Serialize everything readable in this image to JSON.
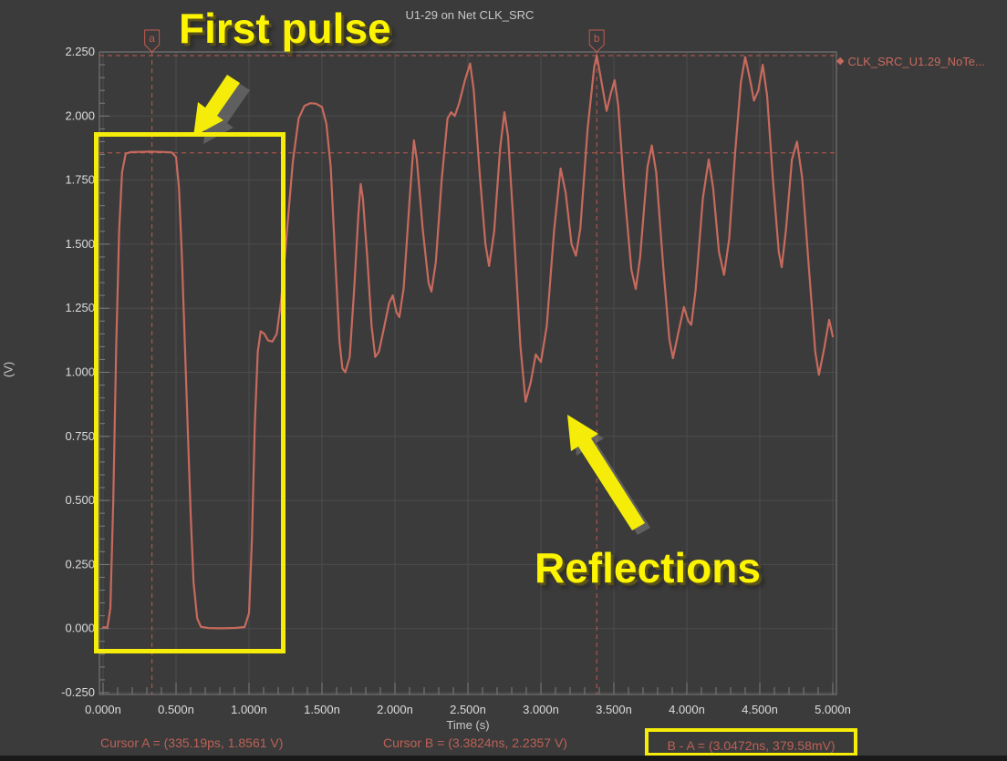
{
  "window": {
    "title": "U1-29 on Net CLK_SRC"
  },
  "chart_data": {
    "type": "line",
    "title": "U1-29 on Net CLK_SRC",
    "xlabel": "Time (s)",
    "ylabel": "(V)",
    "xlim": [
      0,
      5
    ],
    "ylim": [
      -0.25,
      2.25
    ],
    "grid": true,
    "legend_position": "top-right",
    "x_minor_step": 0.1,
    "y_minor_step": 0.05,
    "x_ticks": [
      {
        "value": 0.0,
        "label": "0.000n"
      },
      {
        "value": 0.5,
        "label": "0.500n"
      },
      {
        "value": 1.0,
        "label": "1.000n"
      },
      {
        "value": 1.5,
        "label": "1.500n"
      },
      {
        "value": 2.0,
        "label": "2.000n"
      },
      {
        "value": 2.5,
        "label": "2.500n"
      },
      {
        "value": 3.0,
        "label": "3.000n"
      },
      {
        "value": 3.5,
        "label": "3.500n"
      },
      {
        "value": 4.0,
        "label": "4.000n"
      },
      {
        "value": 4.5,
        "label": "4.500n"
      },
      {
        "value": 5.0,
        "label": "5.000n"
      }
    ],
    "y_ticks": [
      {
        "value": 2.25,
        "label": "2.250"
      },
      {
        "value": 2.0,
        "label": "2.000"
      },
      {
        "value": 1.75,
        "label": "1.750"
      },
      {
        "value": 1.5,
        "label": "1.500"
      },
      {
        "value": 1.25,
        "label": "1.250"
      },
      {
        "value": 1.0,
        "label": "1.000"
      },
      {
        "value": 0.75,
        "label": "0.750"
      },
      {
        "value": 0.5,
        "label": "0.500"
      },
      {
        "value": 0.25,
        "label": "0.250"
      },
      {
        "value": 0.0,
        "label": "0.000"
      },
      {
        "value": -0.25,
        "label": "-0.250"
      }
    ],
    "cursors": [
      {
        "label": "a",
        "t_ns": 0.33519,
        "v": 1.8561
      },
      {
        "label": "b",
        "t_ns": 3.3824,
        "v": 2.2357
      }
    ],
    "series": [
      {
        "name": "CLK_SRC_U1.29_NoTe...",
        "color": "#c76a5d",
        "points": [
          [
            0.0,
            0.005
          ],
          [
            0.03,
            0.005
          ],
          [
            0.05,
            0.08
          ],
          [
            0.07,
            0.5
          ],
          [
            0.09,
            1.1
          ],
          [
            0.11,
            1.55
          ],
          [
            0.13,
            1.78
          ],
          [
            0.155,
            1.853
          ],
          [
            0.19,
            1.859
          ],
          [
            0.25,
            1.86
          ],
          [
            0.32,
            1.861
          ],
          [
            0.4,
            1.86
          ],
          [
            0.47,
            1.858
          ],
          [
            0.5,
            1.84
          ],
          [
            0.52,
            1.72
          ],
          [
            0.54,
            1.45
          ],
          [
            0.57,
            0.95
          ],
          [
            0.6,
            0.45
          ],
          [
            0.62,
            0.18
          ],
          [
            0.645,
            0.04
          ],
          [
            0.67,
            0.007
          ],
          [
            0.72,
            0.002
          ],
          [
            0.8,
            0.001
          ],
          [
            0.9,
            0.002
          ],
          [
            0.97,
            0.006
          ],
          [
            1.0,
            0.06
          ],
          [
            1.02,
            0.35
          ],
          [
            1.04,
            0.8
          ],
          [
            1.06,
            1.08
          ],
          [
            1.08,
            1.16
          ],
          [
            1.105,
            1.15
          ],
          [
            1.13,
            1.125
          ],
          [
            1.16,
            1.12
          ],
          [
            1.19,
            1.15
          ],
          [
            1.22,
            1.28
          ],
          [
            1.26,
            1.55
          ],
          [
            1.3,
            1.82
          ],
          [
            1.34,
            1.99
          ],
          [
            1.38,
            2.04
          ],
          [
            1.42,
            2.05
          ],
          [
            1.46,
            2.048
          ],
          [
            1.5,
            2.035
          ],
          [
            1.53,
            1.97
          ],
          [
            1.56,
            1.8
          ],
          [
            1.59,
            1.45
          ],
          [
            1.62,
            1.12
          ],
          [
            1.64,
            1.015
          ],
          [
            1.66,
            1.0
          ],
          [
            1.69,
            1.06
          ],
          [
            1.72,
            1.32
          ],
          [
            1.75,
            1.62
          ],
          [
            1.765,
            1.735
          ],
          [
            1.78,
            1.68
          ],
          [
            1.81,
            1.45
          ],
          [
            1.84,
            1.18
          ],
          [
            1.865,
            1.06
          ],
          [
            1.89,
            1.08
          ],
          [
            1.92,
            1.16
          ],
          [
            1.96,
            1.27
          ],
          [
            1.985,
            1.3
          ],
          [
            2.01,
            1.235
          ],
          [
            2.03,
            1.215
          ],
          [
            2.06,
            1.33
          ],
          [
            2.1,
            1.67
          ],
          [
            2.13,
            1.905
          ],
          [
            2.15,
            1.83
          ],
          [
            2.19,
            1.56
          ],
          [
            2.23,
            1.35
          ],
          [
            2.25,
            1.315
          ],
          [
            2.28,
            1.43
          ],
          [
            2.32,
            1.75
          ],
          [
            2.36,
            1.99
          ],
          [
            2.385,
            2.015
          ],
          [
            2.41,
            2.0
          ],
          [
            2.44,
            2.05
          ],
          [
            2.48,
            2.14
          ],
          [
            2.515,
            2.205
          ],
          [
            2.54,
            2.1
          ],
          [
            2.58,
            1.78
          ],
          [
            2.62,
            1.5
          ],
          [
            2.645,
            1.415
          ],
          [
            2.68,
            1.55
          ],
          [
            2.72,
            1.87
          ],
          [
            2.75,
            2.015
          ],
          [
            2.775,
            1.92
          ],
          [
            2.81,
            1.6
          ],
          [
            2.86,
            1.1
          ],
          [
            2.895,
            0.885
          ],
          [
            2.93,
            0.96
          ],
          [
            2.965,
            1.07
          ],
          [
            3.0,
            1.04
          ],
          [
            3.04,
            1.18
          ],
          [
            3.09,
            1.55
          ],
          [
            3.135,
            1.795
          ],
          [
            3.17,
            1.7
          ],
          [
            3.21,
            1.5
          ],
          [
            3.24,
            1.455
          ],
          [
            3.27,
            1.56
          ],
          [
            3.32,
            1.95
          ],
          [
            3.365,
            2.19
          ],
          [
            3.3824,
            2.2357
          ],
          [
            3.41,
            2.15
          ],
          [
            3.45,
            2.02
          ],
          [
            3.48,
            2.09
          ],
          [
            3.505,
            2.14
          ],
          [
            3.53,
            2.04
          ],
          [
            3.57,
            1.72
          ],
          [
            3.62,
            1.4
          ],
          [
            3.65,
            1.325
          ],
          [
            3.68,
            1.45
          ],
          [
            3.73,
            1.8
          ],
          [
            3.76,
            1.885
          ],
          [
            3.79,
            1.78
          ],
          [
            3.84,
            1.4
          ],
          [
            3.88,
            1.13
          ],
          [
            3.905,
            1.055
          ],
          [
            3.94,
            1.15
          ],
          [
            3.98,
            1.255
          ],
          [
            4.01,
            1.2
          ],
          [
            4.03,
            1.185
          ],
          [
            4.06,
            1.32
          ],
          [
            4.11,
            1.68
          ],
          [
            4.15,
            1.83
          ],
          [
            4.18,
            1.72
          ],
          [
            4.22,
            1.47
          ],
          [
            4.255,
            1.38
          ],
          [
            4.29,
            1.52
          ],
          [
            4.33,
            1.85
          ],
          [
            4.37,
            2.13
          ],
          [
            4.4,
            2.23
          ],
          [
            4.43,
            2.15
          ],
          [
            4.46,
            2.06
          ],
          [
            4.49,
            2.1
          ],
          [
            4.52,
            2.2
          ],
          [
            4.55,
            2.08
          ],
          [
            4.59,
            1.75
          ],
          [
            4.63,
            1.47
          ],
          [
            4.65,
            1.41
          ],
          [
            4.68,
            1.56
          ],
          [
            4.72,
            1.83
          ],
          [
            4.755,
            1.9
          ],
          [
            4.79,
            1.76
          ],
          [
            4.84,
            1.38
          ],
          [
            4.88,
            1.08
          ],
          [
            4.905,
            0.99
          ],
          [
            4.94,
            1.09
          ],
          [
            4.975,
            1.205
          ],
          [
            5.0,
            1.14
          ]
        ]
      }
    ]
  },
  "legend": {
    "label": "CLK_SRC_U1.29_NoTe..."
  },
  "readouts": {
    "cursor_a": "Cursor A = (335.19ps, 1.8561 V)",
    "cursor_b": "Cursor B = (3.3824ns, 2.2357 V)",
    "delta": "B - A = (3.0472ns, 379.58mV)"
  },
  "annotations": {
    "first_pulse": "First pulse",
    "reflections": "Reflections",
    "accent_color": "#f5ec09"
  },
  "colors": {
    "background": "#3b3b3b",
    "waveform": "#c76a5d",
    "cursor": "#c05b50",
    "grid": "#4d4d4d",
    "axis": "#7d7d7d",
    "tick_text": "#dcdcdc",
    "readout_text": "#bd6156"
  }
}
